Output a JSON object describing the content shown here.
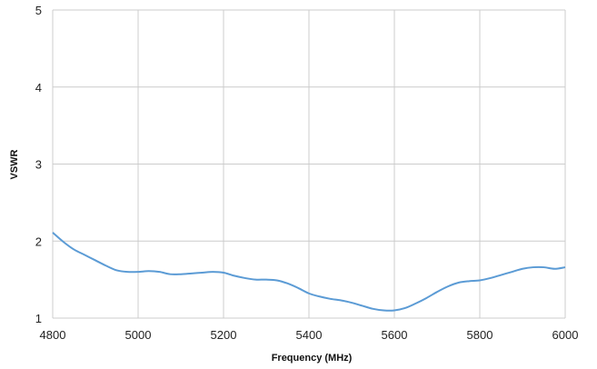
{
  "chart_data": {
    "type": "line",
    "title": "",
    "xlabel": "Frequency (MHz)",
    "ylabel": "VSWR",
    "xlim": [
      4800,
      6000
    ],
    "ylim": [
      1,
      5
    ],
    "x_ticks": [
      "4800",
      "5000",
      "5200",
      "5400",
      "5600",
      "5800",
      "6000"
    ],
    "y_ticks": [
      "1",
      "2",
      "3",
      "4",
      "5"
    ],
    "grid": true,
    "legend": "none",
    "line_color": "#5b9bd5",
    "grid_color": "#cccccc",
    "series": [
      {
        "x": [
          4800,
          4825,
          4850,
          4875,
          4900,
          4925,
          4950,
          4975,
          5000,
          5025,
          5050,
          5075,
          5100,
          5125,
          5150,
          5175,
          5200,
          5225,
          5250,
          5275,
          5300,
          5325,
          5350,
          5375,
          5400,
          5425,
          5450,
          5475,
          5500,
          5525,
          5550,
          5575,
          5600,
          5625,
          5650,
          5675,
          5700,
          5725,
          5750,
          5775,
          5800,
          5825,
          5850,
          5875,
          5900,
          5925,
          5950,
          5975,
          6000
        ],
        "values": [
          2.11,
          1.99,
          1.89,
          1.82,
          1.75,
          1.68,
          1.62,
          1.6,
          1.6,
          1.61,
          1.6,
          1.57,
          1.57,
          1.58,
          1.59,
          1.6,
          1.59,
          1.55,
          1.52,
          1.5,
          1.5,
          1.49,
          1.45,
          1.39,
          1.32,
          1.28,
          1.25,
          1.23,
          1.2,
          1.16,
          1.12,
          1.1,
          1.1,
          1.13,
          1.19,
          1.26,
          1.34,
          1.41,
          1.46,
          1.48,
          1.49,
          1.52,
          1.56,
          1.6,
          1.64,
          1.66,
          1.66,
          1.64,
          1.66
        ]
      }
    ]
  }
}
